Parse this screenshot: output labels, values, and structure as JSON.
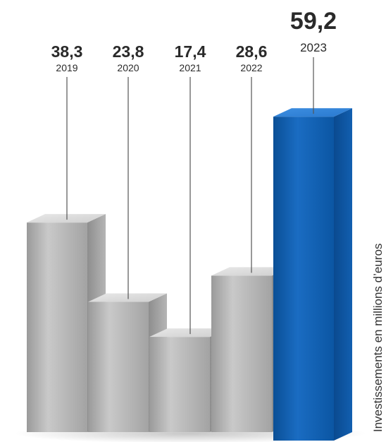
{
  "chart_data": {
    "type": "bar",
    "categories": [
      "2019",
      "2020",
      "2021",
      "2022",
      "2023"
    ],
    "values": [
      38.3,
      23.8,
      17.4,
      28.6,
      59.2
    ],
    "value_labels": [
      "38,3",
      "23,8",
      "17,4",
      "28,6",
      "59,2"
    ],
    "ylabel": "Investissements en millions d’euros",
    "highlight_index": 4,
    "colors": {
      "default_bar": "#b9b9b9",
      "highlight_bar": "#0b5aa8",
      "leader_line": "#555555",
      "text": "#2a2a2a"
    },
    "grid": false,
    "legend": "none"
  }
}
